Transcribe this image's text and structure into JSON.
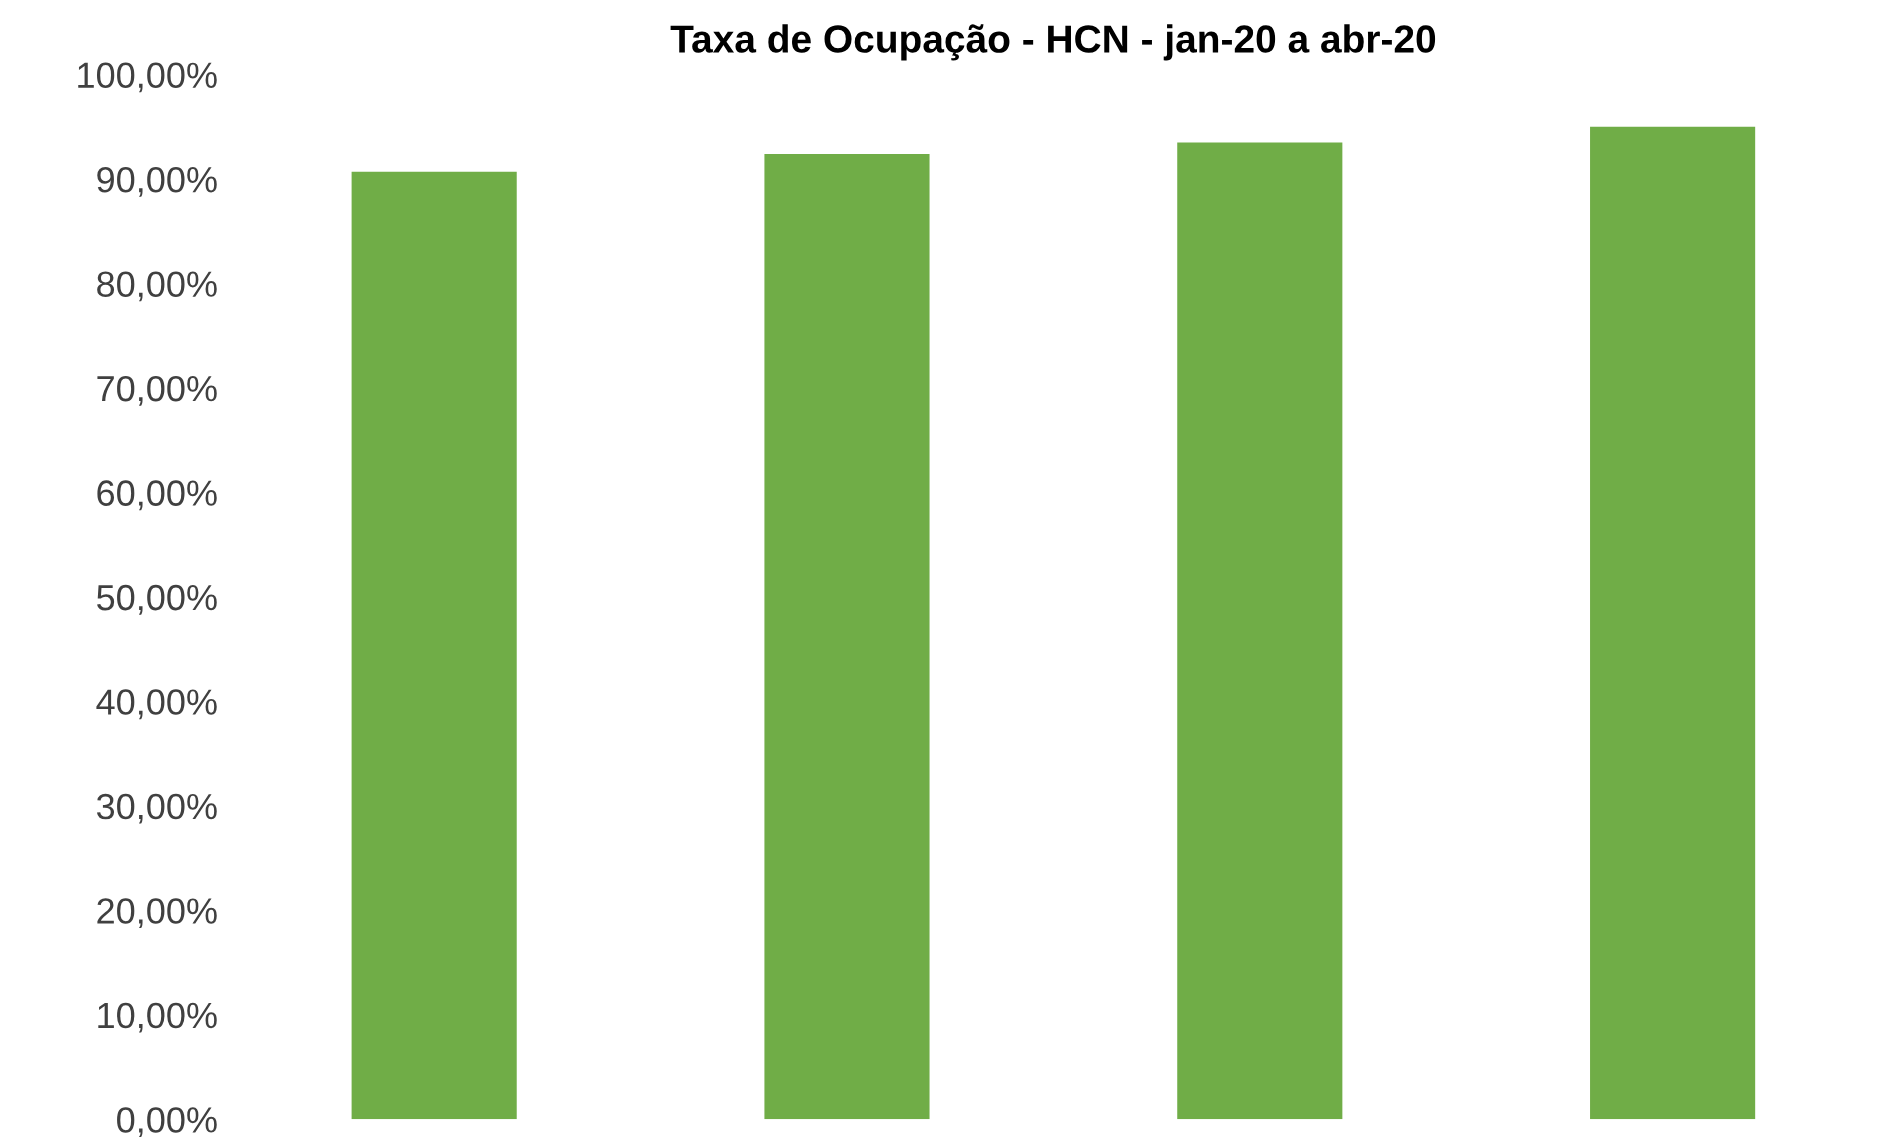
{
  "chart_data": {
    "type": "bar",
    "title": "Taxa de Ocupação - HCN - jan-20 a abr-20",
    "categories": [
      null,
      null,
      null,
      null
    ],
    "values": [
      90.7,
      92.4,
      93.5,
      95.0
    ],
    "color": "#70ad47",
    "ylim": [
      0,
      100
    ],
    "yticks": [
      {
        "value": 0,
        "label": "0,00%"
      },
      {
        "value": 10,
        "label": "10,00%"
      },
      {
        "value": 20,
        "label": "20,00%"
      },
      {
        "value": 30,
        "label": "30,00%"
      },
      {
        "value": 40,
        "label": "40,00%"
      },
      {
        "value": 50,
        "label": "50,00%"
      },
      {
        "value": 60,
        "label": "60,00%"
      },
      {
        "value": 70,
        "label": "70,00%"
      },
      {
        "value": 80,
        "label": "80,00%"
      },
      {
        "value": 90,
        "label": "90,00%"
      },
      {
        "value": 100,
        "label": "100,00%"
      }
    ],
    "grid": false,
    "legend": false
  }
}
